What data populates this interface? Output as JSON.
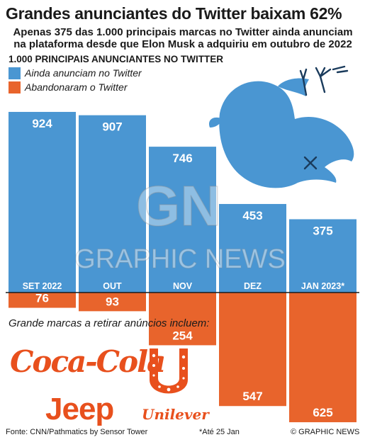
{
  "title": "Grandes anunciantes do Twitter baixam 62%",
  "subtitle": "Apenas 375 das 1.000 principais marcas no Twitter ainda anunciam na plataforma desde que Elon Musk a adquiriu em outubro de 2022",
  "section_label": "1.000 PRINCIPAIS ANUNCIANTES NO TWITTER",
  "legend": [
    {
      "label": "Ainda anunciam no Twitter",
      "color": "#4a96d2"
    },
    {
      "label": "Abandonaram o Twitter",
      "color": "#e8642c"
    }
  ],
  "colors": {
    "blue": "#4a96d2",
    "orange": "#e8642c",
    "brand_orange": "#e8501d"
  },
  "chart_data": {
    "type": "bar",
    "categories": [
      "SET 2022",
      "OUT",
      "NOV",
      "DEZ",
      "JAN 2023*"
    ],
    "series": [
      {
        "name": "Ainda anunciam no Twitter",
        "values": [
          924,
          907,
          746,
          453,
          375
        ]
      },
      {
        "name": "Abandonaram o Twitter",
        "values": [
          76,
          93,
          254,
          547,
          625
        ]
      }
    ],
    "title": "1.000 PRINCIPAIS ANUNCIANTES NO TWITTER",
    "ylim": [
      0,
      1000
    ]
  },
  "brands": {
    "intro": "Grande marcas a retirar anúncios incluem:",
    "coca_cola": "Coca-Cola",
    "jeep": "Jeep",
    "unilever": "Unilever"
  },
  "watermark": {
    "logo": "GN",
    "text": "GRAPHIC NEWS"
  },
  "footer": {
    "source": "Fonte: CNN/Pathmatics by Sensor Tower",
    "note": "*Até 25 Jan",
    "credit": "© GRAPHIC NEWS"
  }
}
